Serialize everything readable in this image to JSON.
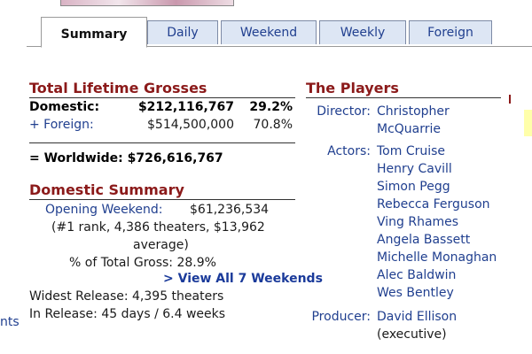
{
  "tabs": [
    "Summary",
    "Daily",
    "Weekend",
    "Weekly",
    "Foreign"
  ],
  "lifetime": {
    "title": "Total Lifetime Grosses",
    "domestic_label": "Domestic:",
    "domestic_value": "$212,116,767",
    "domestic_pct": "29.2%",
    "foreign_label": "+ Foreign:",
    "foreign_value": "$514,500,000",
    "foreign_pct": "70.8%",
    "worldwide": "= Worldwide: $726,616,767"
  },
  "domestic_summary": {
    "title": "Domestic Summary",
    "opening_label": "Opening Weekend:",
    "opening_value": "$61,236,534",
    "rank_line1": "(#1 rank, 4,386 theaters, $13,962",
    "rank_line2": "average)",
    "pct_total": "% of Total Gross: 28.9%",
    "view_all": "> View All 7 Weekends",
    "widest": "Widest Release: 4,395 theaters",
    "in_release": "In Release: 45 days / 6.4 weeks"
  },
  "players": {
    "title": "The Players",
    "director_label": "Director:",
    "director_line1": "Christopher",
    "director_line2": "McQuarrie",
    "actors_label": "Actors:",
    "actors": [
      "Tom Cruise",
      "Henry Cavill",
      "Simon Pegg",
      "Rebecca Ferguson",
      "Ving Rhames",
      "Angela Bassett",
      "Michelle Monaghan",
      "Alec Baldwin",
      "Wes Bentley"
    ],
    "producer_label": "Producer:",
    "producer_line1": "David Ellison",
    "producer_line2": "(executive)"
  },
  "edge": {
    "left_fragment": "nts"
  },
  "colors": {
    "section_title": "#8b1a1a",
    "link_blue": "#203f8f",
    "tab_bg": "#dde6f4"
  }
}
